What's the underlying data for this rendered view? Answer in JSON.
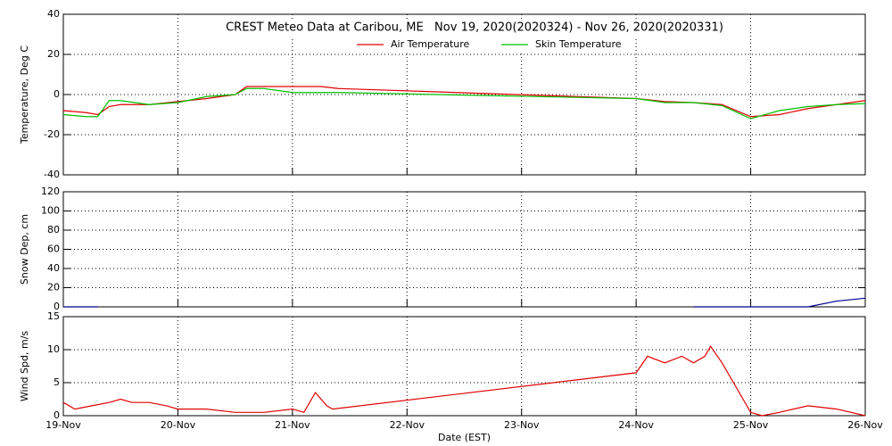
{
  "chart_data": [
    {
      "type": "line",
      "title": "CREST Meteo Data at Caribou, ME   Nov 19, 2020(2020324) - Nov 26, 2020(2020331)",
      "y_label": "Temperature, Deg C",
      "x": [
        0,
        0.2,
        0.3,
        0.4,
        0.5,
        0.75,
        1,
        1.25,
        1.5,
        1.6,
        1.75,
        2,
        2.25,
        2.4,
        5,
        5.25,
        5.5,
        5.75,
        6,
        6.25,
        6.5,
        6.75,
        7
      ],
      "series": [
        {
          "name": "Air Temperature",
          "color": "#e00000",
          "values": [
            -8,
            -9,
            -10,
            -6,
            -5,
            -5,
            -3.5,
            -2,
            0,
            4,
            4,
            4,
            4,
            3,
            -2,
            -3.5,
            -4,
            -5,
            -11,
            -10,
            -7,
            -5,
            -3
          ]
        },
        {
          "name": "Skin Temperature",
          "color": "#00c000",
          "values": [
            -10,
            -11,
            -11,
            -3,
            -3,
            -5,
            -4,
            -1,
            0,
            3,
            3,
            1,
            1,
            1,
            -2,
            -4,
            -4,
            -5.5,
            -12,
            -8,
            -6,
            -5,
            -4.5
          ]
        }
      ],
      "xlim": [
        0,
        7
      ],
      "ylim": [
        -40,
        40
      ],
      "yticks": [
        -40,
        -20,
        0,
        20,
        40
      ],
      "grid": true
    },
    {
      "type": "line",
      "y_label": "Snow Dep, cm",
      "x": [
        0,
        0.3,
        0.5,
        5.5,
        6,
        6.5,
        6.75,
        7
      ],
      "series": [
        {
          "name": "Snow Depth",
          "color": "#000090",
          "values": [
            0,
            0,
            null,
            0,
            0,
            0,
            6,
            9
          ]
        }
      ],
      "xlim": [
        0,
        7
      ],
      "ylim": [
        0,
        120
      ],
      "yticks": [
        0,
        20,
        40,
        60,
        80,
        100,
        120
      ],
      "grid": true
    },
    {
      "type": "line",
      "y_label": "Wind Spd, m/s",
      "x_label": "Date (EST)",
      "x": [
        0,
        0.1,
        0.25,
        0.4,
        0.5,
        0.6,
        0.75,
        0.9,
        1,
        1.25,
        1.5,
        1.75,
        2,
        2.1,
        2.2,
        2.3,
        2.35,
        5,
        5.1,
        5.25,
        5.4,
        5.5,
        5.6,
        5.65,
        5.75,
        5.85,
        6,
        6.1,
        6.25,
        6.5,
        6.75,
        7
      ],
      "series": [
        {
          "name": "Wind Speed",
          "color": "#e00000",
          "values": [
            2,
            1,
            1.5,
            2,
            2.5,
            2,
            2,
            1.5,
            1,
            1,
            0.5,
            0.5,
            1,
            0.5,
            3.5,
            1.5,
            1,
            6.5,
            9,
            8,
            9,
            8,
            9,
            10.5,
            8,
            5,
            0.5,
            0,
            0.5,
            1.5,
            1,
            0
          ]
        }
      ],
      "xlim": [
        0,
        7
      ],
      "ylim": [
        0,
        15
      ],
      "yticks": [
        0,
        5,
        10,
        15
      ],
      "xticks": [
        {
          "value": 0,
          "label": "19-Nov"
        },
        {
          "value": 1,
          "label": "20-Nov"
        },
        {
          "value": 2,
          "label": "21-Nov"
        },
        {
          "value": 3,
          "label": "22-Nov"
        },
        {
          "value": 4,
          "label": "23-Nov"
        },
        {
          "value": 5,
          "label": "24-Nov"
        },
        {
          "value": 6,
          "label": "25-Nov"
        },
        {
          "value": 7,
          "label": "26-Nov"
        }
      ],
      "grid": true
    }
  ]
}
